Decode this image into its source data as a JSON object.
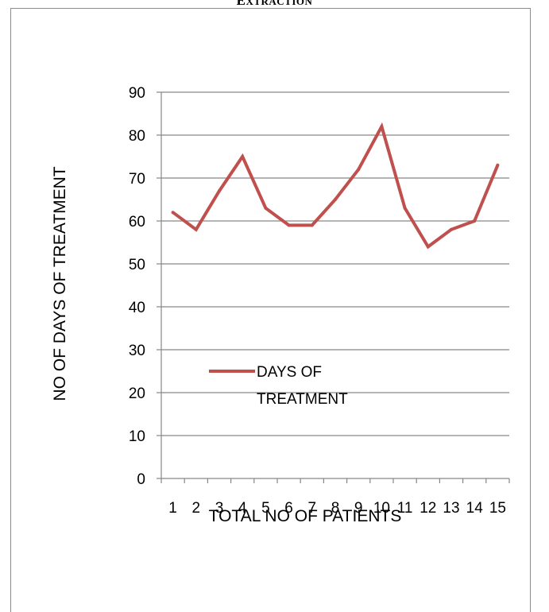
{
  "caption": {
    "first": "E",
    "rest": "XTRACTION"
  },
  "chart_data": {
    "type": "line",
    "title": "",
    "xlabel": "TOTAL NO OF PATIENTS",
    "ylabel": "NO OF DAYS OF TREATMENT",
    "ylim": [
      0,
      90
    ],
    "yticks": [
      "0",
      "10",
      "20",
      "30",
      "40",
      "50",
      "60",
      "70",
      "80",
      "90"
    ],
    "categories": [
      "1",
      "2",
      "3",
      "4",
      "5",
      "6",
      "7",
      "8",
      "9",
      "10",
      "11",
      "12",
      "13",
      "14",
      "15"
    ],
    "series": [
      {
        "name": "DAYS OF TREATMENT",
        "legend_lines": [
          "DAYS OF",
          "TREATMENT"
        ],
        "color": "#c0504d",
        "values": [
          62,
          58,
          67,
          75,
          63,
          59,
          59,
          65,
          72,
          82,
          63,
          54,
          58,
          60,
          73
        ]
      }
    ],
    "grid": true,
    "legend": "inside-left"
  }
}
